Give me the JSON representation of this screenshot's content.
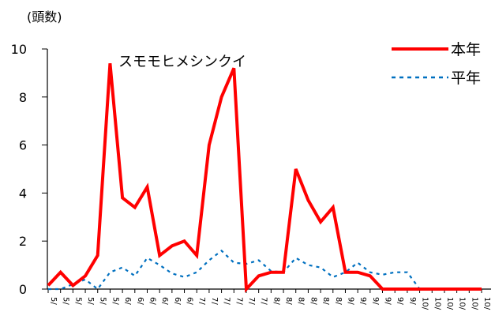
{
  "chart_data": {
    "type": "line",
    "title": "スモモヒメシンクイ",
    "ylabel": "(頭数)",
    "xlabel": "",
    "ylim": [
      0,
      10
    ],
    "yticks": [
      0,
      2,
      4,
      6,
      8,
      10
    ],
    "grid": false,
    "legend_position": "top-right",
    "categories": [
      "5/",
      "5/",
      "5/",
      "5/",
      "5/",
      "5/",
      "6/",
      "6/",
      "6/",
      "6/",
      "6/",
      "6/",
      "7/",
      "7/",
      "7/",
      "7/",
      "7/",
      "7/",
      "8/",
      "8/",
      "8/",
      "8/",
      "8/",
      "8/",
      "9/",
      "9/",
      "9/",
      "9/",
      "9/",
      "9/",
      "10/",
      "10/",
      "10/",
      "10/",
      "10/",
      "10/"
    ],
    "series": [
      {
        "name": "本年",
        "color": "#ff0000",
        "style": "solid",
        "values": [
          0.15,
          0.7,
          0.15,
          0.55,
          1.4,
          9.4,
          3.8,
          3.4,
          4.25,
          1.4,
          1.8,
          2.0,
          1.4,
          6.0,
          8.0,
          9.2,
          0.0,
          0.55,
          0.7,
          0.7,
          5.0,
          3.7,
          2.8,
          3.4,
          0.7,
          0.7,
          0.55,
          0.0,
          0.0,
          0.0,
          0.0,
          0.0,
          0.0,
          0.0,
          0.0,
          0.0
        ]
      },
      {
        "name": "平年",
        "color": "#0070c0",
        "style": "dotted",
        "values": [
          0.0,
          0.0,
          0.2,
          0.4,
          0.0,
          0.7,
          0.9,
          0.55,
          1.3,
          1.0,
          0.65,
          0.5,
          0.7,
          1.2,
          1.6,
          1.1,
          1.05,
          1.2,
          0.75,
          0.7,
          1.3,
          1.0,
          0.9,
          0.5,
          0.7,
          1.1,
          0.7,
          0.6,
          0.7,
          0.7,
          0.0,
          0.0,
          0.0,
          0.0,
          0.0,
          0.0
        ]
      }
    ]
  }
}
